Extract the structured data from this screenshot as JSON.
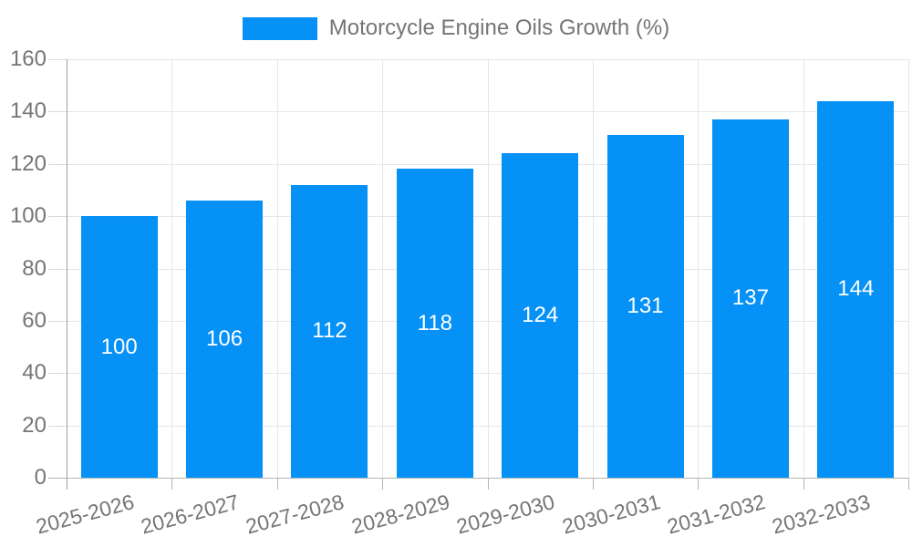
{
  "chart_data": {
    "type": "bar",
    "title": "",
    "series_name": "Motorcycle Engine Oils Growth (%)",
    "categories": [
      "2025-2026",
      "2026-2027",
      "2027-2028",
      "2028-2029",
      "2029-2030",
      "2030-2031",
      "2031-2032",
      "2032-2033"
    ],
    "values": [
      100,
      106,
      112,
      118,
      124,
      131,
      137,
      144
    ],
    "xlabel": "",
    "ylabel": "",
    "ylim": [
      0,
      160
    ],
    "ytick_step": 20,
    "yticks": [
      0,
      20,
      40,
      60,
      80,
      100,
      120,
      140,
      160
    ],
    "legend_position": "top-center",
    "grid": "horizontal lines plus vertical category-boundary lines",
    "value_labels": "white numbers centered inside bars",
    "bar_color": "#0591f5",
    "text_color": "#757575",
    "gridline_color": "#e6e6e6"
  }
}
